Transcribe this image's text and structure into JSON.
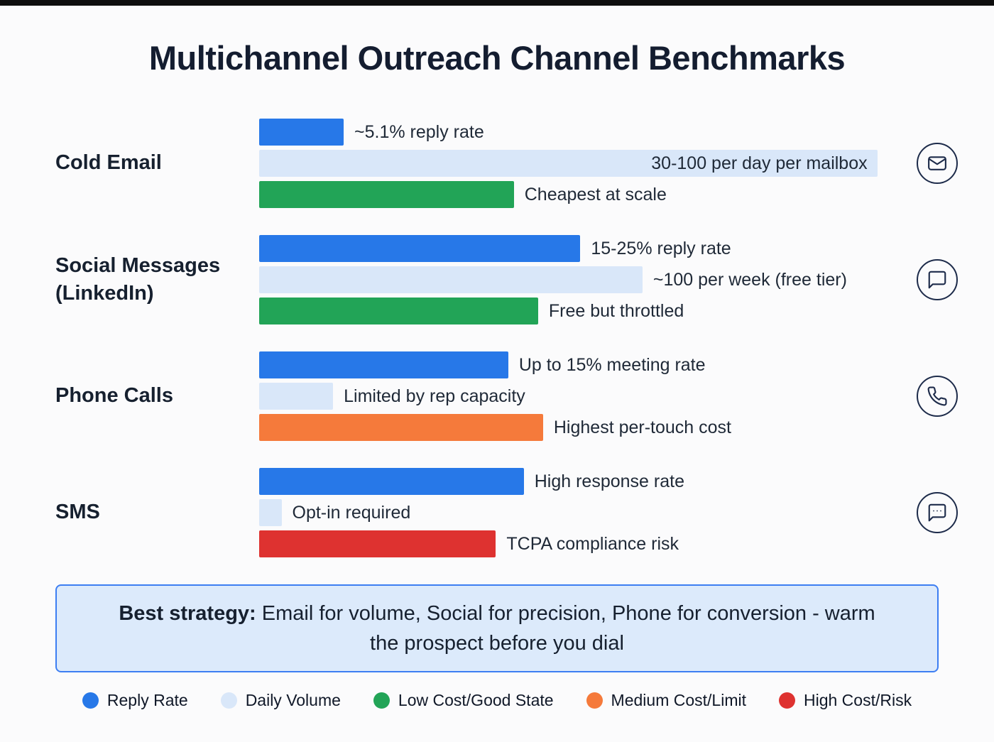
{
  "title": "Multichannel Outreach Channel Benchmarks",
  "colors": {
    "reply_rate": "#2778e8",
    "daily_volume": "#d9e7f9",
    "low_cost": "#22a457",
    "medium_cost": "#f57a3b",
    "high_risk": "#de3230",
    "icon_stroke": "#1d2b4a",
    "callout_bg": "#dceafb",
    "callout_border": "#3d7ef2",
    "heading_text": "#141d30"
  },
  "chart_data": {
    "type": "bar",
    "orientation": "horizontal",
    "value_unit": "relative bar length, percent of track (illustrative)",
    "legend_position": "bottom",
    "rows": [
      {
        "channel": "Cold Email",
        "icon": "mail-icon",
        "bars": [
          {
            "series": "Reply Rate",
            "label": "~5.1% reply rate",
            "value": 13.6
          },
          {
            "series": "Daily Volume",
            "label": "30-100 per day per mailbox",
            "value": 99.5,
            "label_inside": true
          },
          {
            "series": "Low Cost/Good State",
            "label": "Cheapest at scale",
            "value": 41
          }
        ]
      },
      {
        "channel": "Social Messages (LinkedIn)",
        "icon": "chat-bubble-icon",
        "bars": [
          {
            "series": "Reply Rate",
            "label": "15-25% reply rate",
            "value": 51.7
          },
          {
            "series": "Daily Volume",
            "label": "~100 per week (free tier)",
            "value": 61.7
          },
          {
            "series": "Low Cost/Good State",
            "label": "Free but throttled",
            "value": 44.9
          }
        ]
      },
      {
        "channel": "Phone Calls",
        "icon": "phone-icon",
        "bars": [
          {
            "series": "Reply Rate",
            "label": "Up to 15% meeting rate",
            "value": 40.1
          },
          {
            "series": "Daily Volume",
            "label": "Limited by rep capacity",
            "value": 11.9
          },
          {
            "series": "Medium Cost/Limit",
            "label": "Highest per-touch cost",
            "value": 45.7
          }
        ]
      },
      {
        "channel": "SMS",
        "icon": "sms-bubble-icon",
        "bars": [
          {
            "series": "Reply Rate",
            "label": "High response rate",
            "value": 42.6
          },
          {
            "series": "Daily Volume",
            "label": "Opt-in required",
            "value": 3.6
          },
          {
            "series": "High Cost/Risk",
            "label": "TCPA compliance risk",
            "value": 38.1
          }
        ]
      }
    ]
  },
  "callout": {
    "lead": "Best strategy:",
    "text": " Email for volume, Social for precision, Phone for conversion - warm the prospect before you dial"
  },
  "legend": [
    {
      "label": "Reply Rate",
      "color": "#2778e8"
    },
    {
      "label": "Daily Volume",
      "color": "#d9e7f9"
    },
    {
      "label": "Low Cost/Good State",
      "color": "#22a457"
    },
    {
      "label": "Medium Cost/Limit",
      "color": "#f57a3b"
    },
    {
      "label": "High Cost/Risk",
      "color": "#de3230"
    }
  ]
}
